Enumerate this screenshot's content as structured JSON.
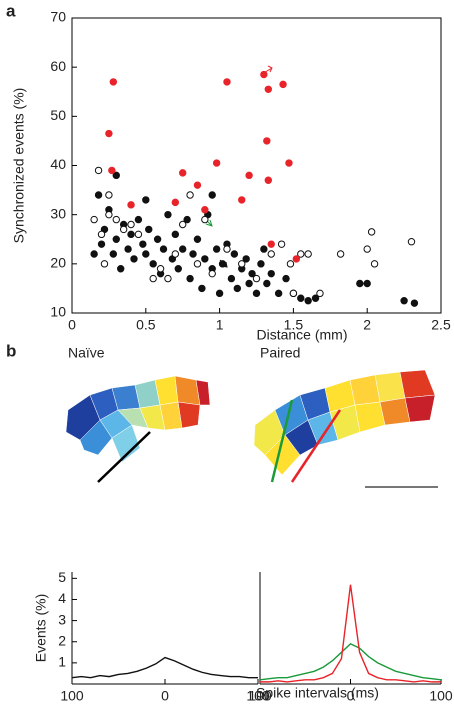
{
  "chart_data": [
    {
      "type": "scatter",
      "panel_label": "a",
      "xlabel": "Distance (mm)",
      "ylabel": "Synchronized events (%)",
      "xlim": [
        0,
        2.5
      ],
      "ylim": [
        10,
        70
      ],
      "xticks": [
        0,
        0.5,
        1,
        1.5,
        2,
        2.5
      ],
      "yticks": [
        10,
        20,
        30,
        40,
        50,
        60,
        70
      ],
      "series": [
        {
          "marker": "filled",
          "color": "#111111",
          "x": [
            0.15,
            0.2,
            0.22,
            0.25,
            0.28,
            0.3,
            0.33,
            0.35,
            0.38,
            0.4,
            0.42,
            0.45,
            0.48,
            0.5,
            0.52,
            0.55,
            0.58,
            0.6,
            0.62,
            0.65,
            0.68,
            0.7,
            0.72,
            0.75,
            0.78,
            0.8,
            0.82,
            0.85,
            0.88,
            0.9,
            0.92,
            0.95,
            0.98,
            1.0,
            1.02,
            1.05,
            1.08,
            1.1,
            1.12,
            1.15,
            1.18,
            1.2,
            1.22,
            1.25,
            1.28,
            1.3,
            1.32,
            1.35,
            1.4,
            1.45,
            1.5,
            1.55,
            1.6,
            1.65,
            1.95,
            2.0,
            2.25,
            2.32,
            0.95,
            0.18,
            0.3,
            0.5
          ],
          "values": [
            22,
            24,
            27,
            31,
            22,
            25,
            19,
            28,
            23,
            26,
            21,
            29,
            24,
            22,
            27,
            20,
            25,
            18,
            23,
            30,
            21,
            26,
            19,
            23,
            29,
            17,
            22,
            25,
            15,
            21,
            30,
            19,
            23,
            14,
            20,
            24,
            17,
            22,
            15,
            19,
            21,
            16,
            18,
            14,
            20,
            23,
            16,
            18,
            14,
            17,
            14,
            13,
            12.5,
            13,
            16,
            16,
            12.5,
            12,
            34,
            34,
            38,
            33
          ]
        },
        {
          "marker": "open",
          "color": "#111111",
          "x": [
            0.15,
            0.18,
            0.2,
            0.22,
            0.25,
            0.3,
            0.35,
            0.45,
            0.55,
            0.6,
            0.65,
            0.7,
            0.75,
            0.8,
            0.85,
            0.9,
            0.95,
            1.05,
            1.15,
            1.25,
            1.35,
            1.42,
            1.48,
            1.5,
            1.55,
            1.6,
            1.68,
            1.82,
            2.0,
            2.03,
            2.05,
            2.3,
            0.25,
            0.4
          ],
          "values": [
            29,
            39,
            26,
            20,
            30,
            29,
            27,
            26,
            17,
            19,
            17,
            22,
            28,
            34,
            20,
            29,
            18,
            23,
            20,
            17,
            22,
            24,
            20,
            14,
            22,
            22,
            14,
            22,
            23,
            26.5,
            20,
            24.5,
            34,
            28
          ]
        },
        {
          "marker": "filled",
          "color": "#e8242a",
          "x": [
            0.28,
            0.25,
            0.27,
            0.4,
            0.75,
            0.85,
            0.98,
            1.05,
            1.15,
            1.2,
            1.3,
            1.33,
            1.32,
            1.33,
            1.35,
            1.43,
            1.47,
            1.52,
            0.9,
            0.7
          ],
          "values": [
            57,
            46.5,
            39,
            32,
            38.5,
            36,
            40.5,
            57,
            33,
            38,
            58.5,
            55.5,
            45,
            37,
            24,
            56.5,
            40.5,
            21,
            31,
            32.5
          ]
        }
      ]
    },
    {
      "type": "line",
      "panel_label": "b",
      "maps": [
        "Naïve",
        "Paired"
      ],
      "xlabel": "Spike intervals (ms)",
      "ylabel": "Events (%)",
      "xlim": [
        -100,
        100
      ],
      "ylim": [
        0,
        5.3
      ],
      "xticks": [
        {
          "value": -100,
          "label": "100"
        },
        0,
        {
          "value": 100,
          "label": "100"
        }
      ],
      "yticks": [
        1,
        2,
        3,
        4,
        5
      ],
      "x": [
        -100,
        -90,
        -80,
        -70,
        -60,
        -50,
        -40,
        -30,
        -20,
        -10,
        0,
        10,
        20,
        30,
        40,
        50,
        60,
        70,
        80,
        90,
        100
      ],
      "series": [
        {
          "color": "#111111",
          "values": [
            0.3,
            0.35,
            0.3,
            0.4,
            0.35,
            0.45,
            0.5,
            0.6,
            0.75,
            0.95,
            1.25,
            1.1,
            0.9,
            0.7,
            0.55,
            0.45,
            0.4,
            0.35,
            0.35,
            0.3,
            0.3
          ]
        }
      ]
    },
    {
      "type": "line",
      "xlim": [
        -100,
        100
      ],
      "ylim": [
        0,
        5.3
      ],
      "xticks": [
        {
          "value": -100,
          "label": "100"
        },
        0,
        {
          "value": 100,
          "label": "100"
        }
      ],
      "x": [
        -100,
        -90,
        -80,
        -70,
        -60,
        -50,
        -40,
        -30,
        -20,
        -10,
        0,
        10,
        20,
        30,
        40,
        50,
        60,
        70,
        80,
        90,
        100
      ],
      "series": [
        {
          "color": "#1a9a3a",
          "values": [
            0.2,
            0.25,
            0.3,
            0.3,
            0.4,
            0.5,
            0.6,
            0.8,
            1.1,
            1.5,
            1.9,
            1.7,
            1.3,
            1.0,
            0.8,
            0.6,
            0.5,
            0.4,
            0.3,
            0.25,
            0.2
          ]
        },
        {
          "color": "#e8242a",
          "values": [
            0.1,
            0.1,
            0.15,
            0.1,
            0.15,
            0.2,
            0.2,
            0.3,
            0.5,
            1.2,
            4.7,
            1.5,
            0.5,
            0.3,
            0.2,
            0.2,
            0.15,
            0.1,
            0.15,
            0.1,
            0.1
          ]
        }
      ]
    }
  ]
}
